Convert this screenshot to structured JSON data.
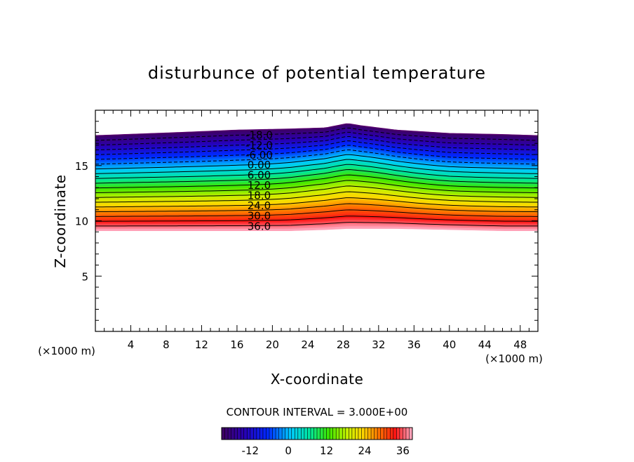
{
  "chart_data": {
    "type": "contour",
    "title": "disturbunce of potential temperature",
    "xlabel": "X-coordinate",
    "ylabel": "Z-coordinate",
    "x_unit": "(×1000 m)",
    "z_unit": "(×1000 m)",
    "xlim": [
      0,
      50
    ],
    "ylim": [
      0,
      20
    ],
    "x_ticks": [
      4,
      8,
      12,
      16,
      20,
      24,
      28,
      32,
      36,
      40,
      44,
      48
    ],
    "y_ticks": [
      5,
      10,
      15
    ],
    "grid": false,
    "contour_interval_text": "CONTOUR INTERVAL = 3.000E+00",
    "contour_interval": 3,
    "field_range": [
      -21,
      39
    ],
    "levels": [
      -18,
      -15,
      -12,
      -9,
      -6,
      -3,
      0,
      3,
      6,
      9,
      12,
      15,
      18,
      21,
      24,
      27,
      30,
      33,
      36
    ],
    "contour_labels": [
      "-18.0",
      "-12.0",
      "-6.00",
      "0.00",
      "6.00",
      "12.0",
      "18.0",
      "24.0",
      "30.0",
      "36.0"
    ],
    "label_x": 18.5,
    "field_profile": {
      "x": [
        0,
        10,
        16,
        22,
        26,
        28.5,
        30,
        34,
        40,
        46,
        50
      ],
      "z_top": [
        17.7,
        18.0,
        18.2,
        18.3,
        18.4,
        18.8,
        18.6,
        18.2,
        17.9,
        17.8,
        17.7
      ],
      "z_bottom": [
        9.1,
        9.1,
        9.1,
        9.1,
        9.2,
        9.3,
        9.3,
        9.3,
        9.2,
        9.1,
        9.1
      ],
      "bulge_amplitude": 0.6,
      "bulge_center": 29,
      "bulge_width": 7
    },
    "colorbar": {
      "tick_labels": [
        "-12",
        "0",
        "12",
        "24",
        "36"
      ],
      "tick_values": [
        -12,
        0,
        12,
        24,
        36
      ],
      "range": [
        -21,
        39
      ],
      "colormap": "rainbow (purple-blue-cyan-green-yellow-red-pink)"
    }
  }
}
